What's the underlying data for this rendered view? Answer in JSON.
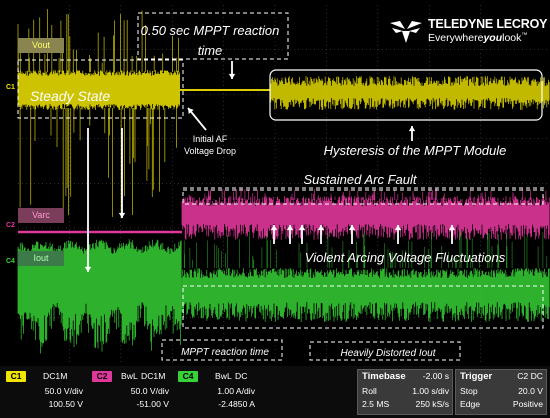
{
  "brand": {
    "name": "TELEDYNE LECROY",
    "tagline_prefix": "Everywhere",
    "tagline_bold": "you",
    "tagline_suffix": "look",
    "tm": "™"
  },
  "annotations": {
    "mppt_time_line1": "0.50 sec MPPT reaction",
    "mppt_time_line2": "time",
    "steady_state": "Steady State",
    "initial_af_line1": "Initial AF",
    "initial_af_line2": "Voltage Drop",
    "hysteresis": "Hysteresis of the MPPT Module",
    "sustained": "Sustained Arc Fault",
    "violent": "Violent Arcing Voltage Fluctuations",
    "mppt_reaction": "MPPT reaction time",
    "distorted": "Heavily Distorted Iout"
  },
  "trace_labels": {
    "vout": "Vout",
    "varc": "Varc",
    "iout": "Iout"
  },
  "channel_markers": {
    "c1": "C1",
    "c2": "C2",
    "c4": "C4"
  },
  "channels": [
    {
      "id": "C1",
      "coupling": "DC1M",
      "row2_left": "",
      "row2_right": "",
      "vdiv": "50.0 V/div",
      "offset": "100.50 V",
      "color": "#f2e600"
    },
    {
      "id": "C2",
      "coupling": "DC1M",
      "bwl": "BwL",
      "vdiv": "50.0 V/div",
      "offset": "-51.00 V",
      "color": "#e0379b"
    },
    {
      "id": "C4",
      "coupling": "DC",
      "bwl": "BwL",
      "vdiv": "1.00 A/div",
      "offset": "-2.4850 A",
      "color": "#37d237"
    }
  ],
  "timebase": {
    "title": "Timebase",
    "delay": "-2.00 s",
    "mode": "Roll",
    "tdiv": "1.00 s/div",
    "samples": "2.5 MS",
    "rate": "250 kS/s"
  },
  "trigger": {
    "title": "Trigger",
    "source": "C2 DC",
    "state": "Stop",
    "level": "20.0 V",
    "type": "Edge",
    "slope": "Positive"
  },
  "colors": {
    "yellow": "#f2e600",
    "magenta": "#e0379b",
    "green": "#37d237",
    "grid": "#5a5a5a"
  }
}
